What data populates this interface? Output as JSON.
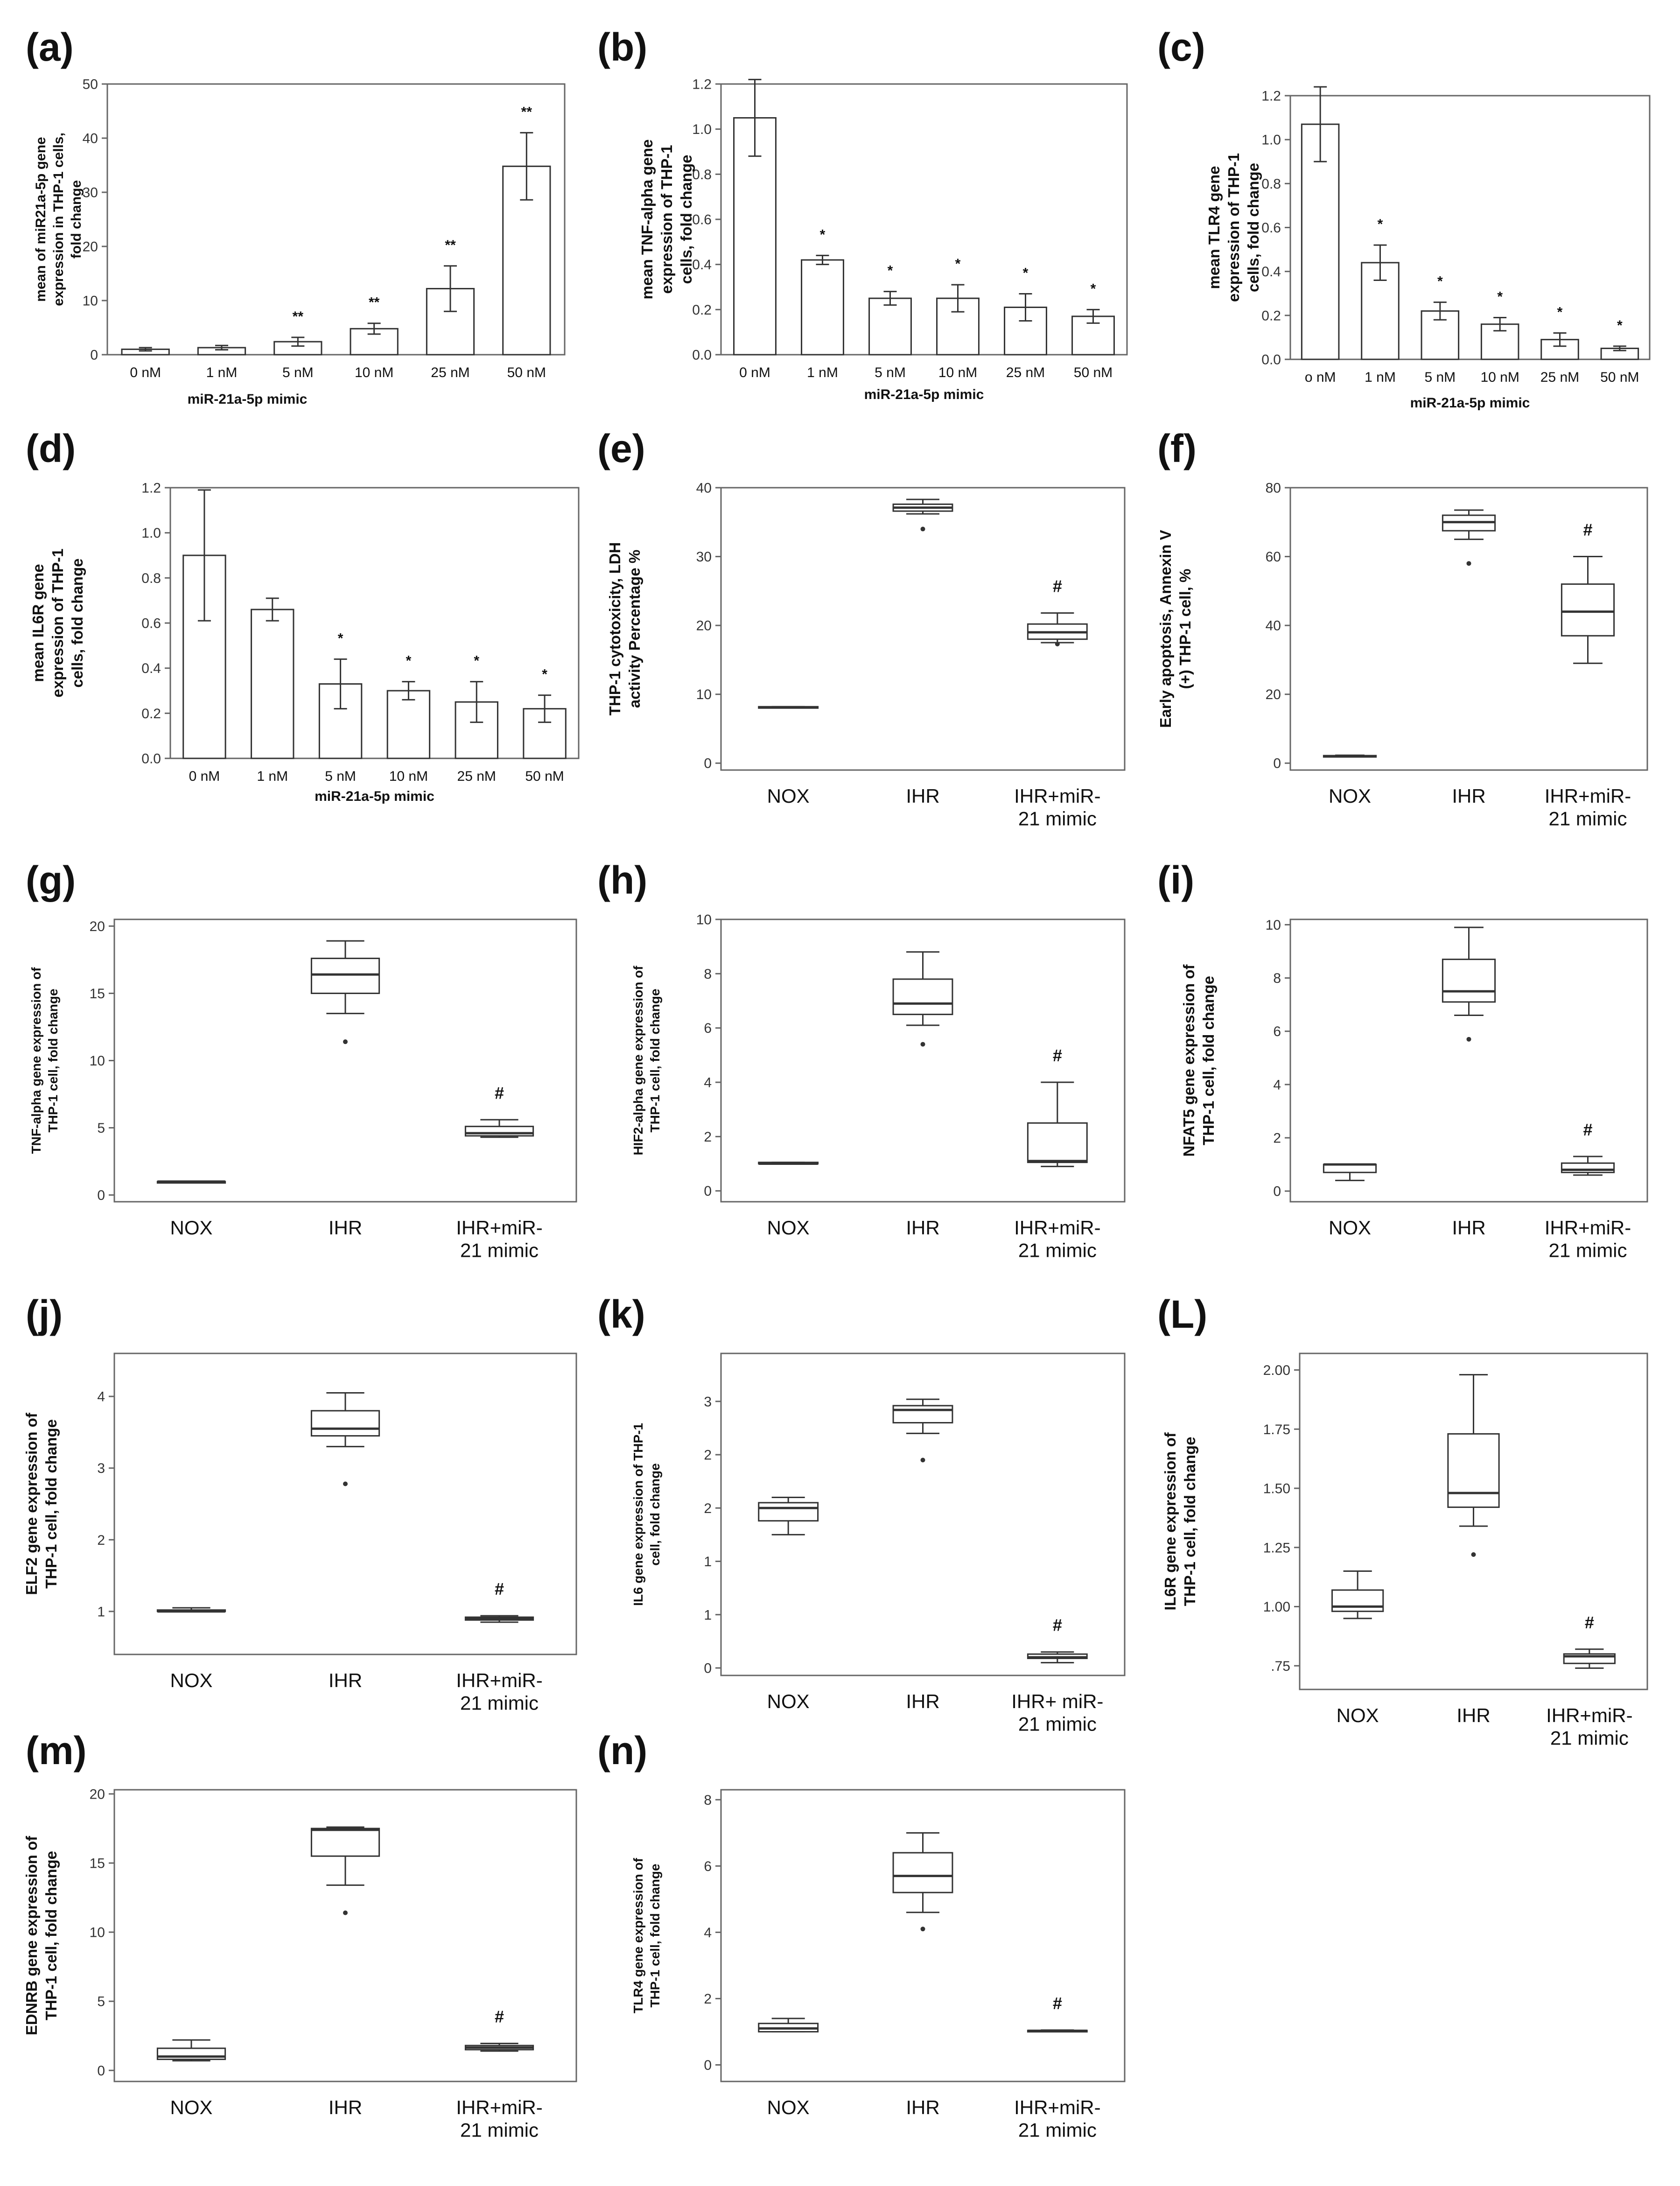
{
  "figure": {
    "colors": {
      "axis": "#666666",
      "mark": "#333333",
      "text": "#111111",
      "background": "#ffffff"
    }
  },
  "chart_data": [
    {
      "id": "a",
      "panel_label": "(a)",
      "type": "bar",
      "ylabel_lines": [
        "mean of miR21a-5p gene",
        "expression in THP-1 cells,",
        "fold change"
      ],
      "xlabel": "miR-21a-5p mimic",
      "categories": [
        "0 nM",
        "1 nM",
        "5 nM",
        "10 nM",
        "25 nM",
        "50 nM"
      ],
      "values": [
        1.0,
        1.3,
        2.4,
        4.8,
        12.2,
        34.8
      ],
      "errors": [
        0.3,
        0.4,
        0.8,
        1.0,
        4.2,
        6.2
      ],
      "annotations": [
        "",
        "",
        "**",
        "**",
        "**",
        "**"
      ],
      "ylim": [
        0,
        50
      ],
      "yticks": [
        0,
        10,
        20,
        30,
        40,
        50
      ],
      "ytick_labels": [
        "0",
        "10",
        "20",
        "30",
        "40",
        "50"
      ]
    },
    {
      "id": "b",
      "panel_label": "(b)",
      "type": "bar",
      "ylabel_lines": [
        "mean TNF-alpha gene",
        "expression of THP-1",
        "cells, fold change"
      ],
      "xlabel": "miR-21a-5p mimic",
      "categories": [
        "0 nM",
        "1 nM",
        "5 nM",
        "10 nM",
        "25 nM",
        "50 nM"
      ],
      "values": [
        1.05,
        0.42,
        0.25,
        0.25,
        0.21,
        0.17
      ],
      "errors": [
        0.17,
        0.02,
        0.03,
        0.06,
        0.06,
        0.03
      ],
      "annotations": [
        "",
        "*",
        "*",
        "*",
        "*",
        "*"
      ],
      "ylim": [
        0,
        1.2
      ],
      "yticks": [
        0,
        0.2,
        0.4,
        0.6,
        0.8,
        1.0,
        1.2
      ],
      "ytick_labels": [
        "0.0",
        "0.2",
        "0.4",
        "0.6",
        "0.8",
        "1.0",
        "1.2"
      ]
    },
    {
      "id": "c",
      "panel_label": "(c)",
      "type": "bar",
      "ylabel_lines": [
        "mean TLR4 gene",
        "expression of THP-1",
        "cells, fold change"
      ],
      "xlabel": "miR-21a-5p mimic",
      "categories": [
        "o nM",
        "1 nM",
        "5 nM",
        "10 nM",
        "25 nM",
        "50 nM"
      ],
      "values": [
        1.07,
        0.44,
        0.22,
        0.16,
        0.09,
        0.05
      ],
      "errors": [
        0.17,
        0.08,
        0.04,
        0.03,
        0.03,
        0.01
      ],
      "annotations": [
        "",
        "*",
        "*",
        "*",
        "*",
        "*"
      ],
      "ylim": [
        0,
        1.2
      ],
      "yticks": [
        0,
        0.2,
        0.4,
        0.6,
        0.8,
        1.0,
        1.2
      ],
      "ytick_labels": [
        "0.0",
        "0.2",
        "0.4",
        "0.6",
        "0.8",
        "1.0",
        "1.2"
      ]
    },
    {
      "id": "d",
      "panel_label": "(d)",
      "type": "bar",
      "ylabel_lines": [
        "mean IL6R gene",
        "expression of THP-1",
        "cells, fold change"
      ],
      "xlabel": "miR-21a-5p mimic",
      "categories": [
        "0 nM",
        "1 nM",
        "5 nM",
        "10 nM",
        "25 nM",
        "50 nM"
      ],
      "values": [
        0.9,
        0.66,
        0.33,
        0.3,
        0.25,
        0.22
      ],
      "errors": [
        0.29,
        0.05,
        0.11,
        0.04,
        0.09,
        0.06
      ],
      "annotations": [
        "",
        "",
        "*",
        "*",
        "*",
        "*"
      ],
      "ylim": [
        0,
        1.2
      ],
      "yticks": [
        0,
        0.2,
        0.4,
        0.6,
        0.8,
        1.0,
        1.2
      ],
      "ytick_labels": [
        "0.0",
        "0.2",
        "0.4",
        "0.6",
        "0.8",
        "1.0",
        "1.2"
      ]
    },
    {
      "id": "e",
      "panel_label": "(e)",
      "type": "box",
      "ylabel_lines": [
        "THP-1 cytotoxicity, LDH",
        "activity Percentage %"
      ],
      "categories": [
        [
          "NOX"
        ],
        [
          "IHR"
        ],
        [
          "IHR+miR-",
          "21 mimic"
        ]
      ],
      "boxes": [
        {
          "min": 8.1,
          "q1": 8.1,
          "median": 8.1,
          "q3": 8.2,
          "max": 8.2,
          "outliers": []
        },
        {
          "min": 36.2,
          "q1": 36.6,
          "median": 37.1,
          "q3": 37.6,
          "max": 38.3,
          "outliers": [
            34.0
          ]
        },
        {
          "min": 17.5,
          "q1": 18.0,
          "median": 19.0,
          "q3": 20.2,
          "max": 21.8,
          "outliers": [
            17.3
          ]
        }
      ],
      "annotations": [
        "",
        "",
        "#"
      ],
      "ylim": [
        -1,
        40
      ],
      "yticks": [
        0,
        10,
        20,
        30,
        40
      ],
      "ytick_labels": [
        "0",
        "10",
        "20",
        "30",
        "40"
      ]
    },
    {
      "id": "f",
      "panel_label": "(f)",
      "type": "box",
      "ylabel_lines": [
        "Early apoptosis, Annexin V",
        "(+) THP-1 cell, %"
      ],
      "categories": [
        [
          "NOX"
        ],
        [
          "IHR"
        ],
        [
          "IHR+miR-",
          "21 mimic"
        ]
      ],
      "boxes": [
        {
          "min": 2.0,
          "q1": 2.0,
          "median": 2.0,
          "q3": 2.2,
          "max": 2.3,
          "outliers": []
        },
        {
          "min": 65,
          "q1": 67.5,
          "median": 70,
          "q3": 72,
          "max": 73.5,
          "outliers": [
            58
          ]
        },
        {
          "min": 29,
          "q1": 37,
          "median": 44,
          "q3": 52,
          "max": 60,
          "outliers": []
        }
      ],
      "annotations": [
        "",
        "",
        "#"
      ],
      "ylim": [
        -2,
        80
      ],
      "yticks": [
        0,
        20,
        40,
        60,
        80
      ],
      "ytick_labels": [
        "0",
        "20",
        "40",
        "60",
        "80"
      ]
    },
    {
      "id": "g",
      "panel_label": "(g)",
      "type": "box",
      "ylabel_lines": [
        "TNF-alpha gene expression of",
        "THP-1 cell, fold change"
      ],
      "categories": [
        [
          "NOX"
        ],
        [
          "IHR"
        ],
        [
          "IHR+miR-",
          "21 mimic"
        ]
      ],
      "boxes": [
        {
          "min": 1.0,
          "q1": 1.0,
          "median": 1.0,
          "q3": 1.0,
          "max": 1.0,
          "outliers": []
        },
        {
          "min": 13.5,
          "q1": 15.0,
          "median": 16.4,
          "q3": 17.6,
          "max": 18.9,
          "outliers": [
            11.4
          ]
        },
        {
          "min": 4.3,
          "q1": 4.4,
          "median": 4.6,
          "q3": 5.1,
          "max": 5.6,
          "outliers": []
        }
      ],
      "annotations": [
        "",
        "",
        "#"
      ],
      "ylim": [
        -0.5,
        20.5
      ],
      "yticks": [
        0,
        5,
        10,
        15,
        20
      ],
      "ytick_labels": [
        "0",
        "5",
        "10",
        "15",
        "20"
      ]
    },
    {
      "id": "h",
      "panel_label": "(h)",
      "type": "box",
      "ylabel_lines": [
        "HIF2-alpha gene expression of",
        "THP-1 cell, fold change"
      ],
      "categories": [
        [
          "NOX"
        ],
        [
          "IHR"
        ],
        [
          "IHR+miR-",
          "21 mimic"
        ]
      ],
      "boxes": [
        {
          "min": 1.0,
          "q1": 1.0,
          "median": 1.0,
          "q3": 1.05,
          "max": 1.05,
          "outliers": []
        },
        {
          "min": 6.1,
          "q1": 6.5,
          "median": 6.9,
          "q3": 7.8,
          "max": 8.8,
          "outliers": [
            5.4
          ]
        },
        {
          "min": 0.9,
          "q1": 1.05,
          "median": 1.1,
          "q3": 2.5,
          "max": 4.0,
          "outliers": []
        }
      ],
      "annotations": [
        "",
        "",
        "#"
      ],
      "ylim": [
        -0.4,
        10
      ],
      "yticks": [
        0,
        2,
        4,
        6,
        8,
        10
      ],
      "ytick_labels": [
        "0",
        "2",
        "4",
        "6",
        "8",
        "10"
      ]
    },
    {
      "id": "i",
      "panel_label": "(i)",
      "type": "box",
      "ylabel_lines": [
        "NFAT5 gene expression of",
        "THP-1 cell, fold change"
      ],
      "categories": [
        [
          "NOX"
        ],
        [
          "IHR"
        ],
        [
          "IHR+miR-",
          "21 mimic"
        ]
      ],
      "boxes": [
        {
          "min": 0.4,
          "q1": 0.7,
          "median": 1.0,
          "q3": 1.0,
          "max": 1.0,
          "outliers": []
        },
        {
          "min": 6.6,
          "q1": 7.1,
          "median": 7.5,
          "q3": 8.7,
          "max": 9.9,
          "outliers": [
            5.7
          ]
        },
        {
          "min": 0.6,
          "q1": 0.7,
          "median": 0.8,
          "q3": 1.05,
          "max": 1.3,
          "outliers": []
        }
      ],
      "annotations": [
        "",
        "",
        "#"
      ],
      "ylim": [
        -0.4,
        10.2
      ],
      "yticks": [
        0,
        2,
        4,
        6,
        8,
        10
      ],
      "ytick_labels": [
        "0",
        "2",
        "4",
        "6",
        "8",
        "10"
      ]
    },
    {
      "id": "j",
      "panel_label": "(j)",
      "type": "box",
      "ylabel_lines": [
        "ELF2 gene expression of",
        "THP-1 cell, fold change"
      ],
      "categories": [
        [
          "NOX"
        ],
        [
          "IHR"
        ],
        [
          "IHR+miR-",
          "21 mimic"
        ]
      ],
      "boxes": [
        {
          "min": 1.0,
          "q1": 1.0,
          "median": 1.0,
          "q3": 1.02,
          "max": 1.05,
          "outliers": []
        },
        {
          "min": 3.3,
          "q1": 3.45,
          "median": 3.55,
          "q3": 3.8,
          "max": 4.05,
          "outliers": [
            2.78
          ]
        },
        {
          "min": 0.85,
          "q1": 0.88,
          "median": 0.9,
          "q3": 0.92,
          "max": 0.94,
          "outliers": []
        }
      ],
      "annotations": [
        "",
        "",
        "#"
      ],
      "ylim": [
        0.4,
        4.6
      ],
      "yticks": [
        1,
        2,
        3,
        4
      ],
      "ytick_labels": [
        "1",
        "2",
        "3",
        "4"
      ]
    },
    {
      "id": "k",
      "panel_label": "(k)",
      "type": "box",
      "ylabel_lines": [
        "IL6 gene expression of THP-1",
        "cell, fold change"
      ],
      "categories": [
        [
          "NOX"
        ],
        [
          "IHR"
        ],
        [
          "IHR+ miR-",
          "21 mimic"
        ]
      ],
      "boxes": [
        {
          "min": 1.25,
          "q1": 1.38,
          "median": 1.5,
          "q3": 1.55,
          "max": 1.6,
          "outliers": []
        },
        {
          "min": 2.2,
          "q1": 2.3,
          "median": 2.42,
          "q3": 2.46,
          "max": 2.52,
          "outliers": [
            1.95
          ]
        },
        {
          "min": 0.05,
          "q1": 0.09,
          "median": 0.1,
          "q3": 0.13,
          "max": 0.15,
          "outliers": []
        }
      ],
      "annotations": [
        "",
        "",
        "#"
      ],
      "ylim": [
        -0.07,
        2.95
      ],
      "yticks": [
        0,
        0.5,
        1.0,
        1.5,
        2.0,
        2.5
      ],
      "ytick_labels": [
        "0",
        "1",
        "1",
        "2",
        "2",
        "3"
      ]
    },
    {
      "id": "L",
      "panel_label": "(L)",
      "type": "box",
      "ylabel_lines": [
        "IL6R gene expression of",
        "THP-1 cell, fold change"
      ],
      "categories": [
        [
          "NOX"
        ],
        [
          "IHR"
        ],
        [
          "IHR+miR-",
          "21 mimic"
        ]
      ],
      "boxes": [
        {
          "min": 0.95,
          "q1": 0.98,
          "median": 1.0,
          "q3": 1.07,
          "max": 1.15,
          "outliers": []
        },
        {
          "min": 1.34,
          "q1": 1.42,
          "median": 1.48,
          "q3": 1.73,
          "max": 1.98,
          "outliers": [
            1.22
          ]
        },
        {
          "min": 0.74,
          "q1": 0.76,
          "median": 0.79,
          "q3": 0.8,
          "max": 0.82,
          "outliers": []
        }
      ],
      "annotations": [
        "",
        "",
        "#"
      ],
      "ylim": [
        0.65,
        2.07
      ],
      "yticks": [
        0.75,
        1.0,
        1.25,
        1.5,
        1.75,
        2.0
      ],
      "ytick_labels": [
        ".75",
        "1.00",
        "1.25",
        "1.50",
        "1.75",
        "2.00"
      ]
    },
    {
      "id": "m",
      "panel_label": "(m)",
      "type": "box",
      "ylabel_lines": [
        "EDNRB gene expression of",
        "THP-1 cell, fold change"
      ],
      "categories": [
        [
          "NOX"
        ],
        [
          "IHR"
        ],
        [
          "IHR+miR-",
          "21 mimic"
        ]
      ],
      "boxes": [
        {
          "min": 0.7,
          "q1": 0.8,
          "median": 1.0,
          "q3": 1.6,
          "max": 2.2,
          "outliers": []
        },
        {
          "min": 13.4,
          "q1": 15.5,
          "median": 17.4,
          "q3": 17.5,
          "max": 17.6,
          "outliers": [
            11.4
          ]
        },
        {
          "min": 1.4,
          "q1": 1.5,
          "median": 1.65,
          "q3": 1.8,
          "max": 1.95,
          "outliers": []
        }
      ],
      "annotations": [
        "",
        "",
        "#"
      ],
      "ylim": [
        -0.8,
        20.3
      ],
      "yticks": [
        0,
        5,
        10,
        15,
        20
      ],
      "ytick_labels": [
        "0",
        "5",
        "10",
        "15",
        "20"
      ]
    },
    {
      "id": "n",
      "panel_label": "(n)",
      "type": "box",
      "ylabel_lines": [
        "TLR4 gene expression of",
        "THP-1 cell, fold change"
      ],
      "categories": [
        [
          "NOX"
        ],
        [
          "IHR"
        ],
        [
          "IHR+miR-",
          "21 mimic"
        ]
      ],
      "boxes": [
        {
          "min": 1.0,
          "q1": 1.0,
          "median": 1.1,
          "q3": 1.25,
          "max": 1.4,
          "outliers": []
        },
        {
          "min": 4.6,
          "q1": 5.2,
          "median": 5.7,
          "q3": 6.4,
          "max": 7.0,
          "outliers": [
            4.1
          ]
        },
        {
          "min": 1.02,
          "q1": 1.02,
          "median": 1.03,
          "q3": 1.04,
          "max": 1.05,
          "outliers": []
        }
      ],
      "annotations": [
        "",
        "",
        "#"
      ],
      "ylim": [
        -0.5,
        8.3
      ],
      "yticks": [
        0,
        2,
        4,
        6,
        8
      ],
      "ytick_labels": [
        "0",
        "2",
        "4",
        "6",
        "8"
      ]
    }
  ]
}
